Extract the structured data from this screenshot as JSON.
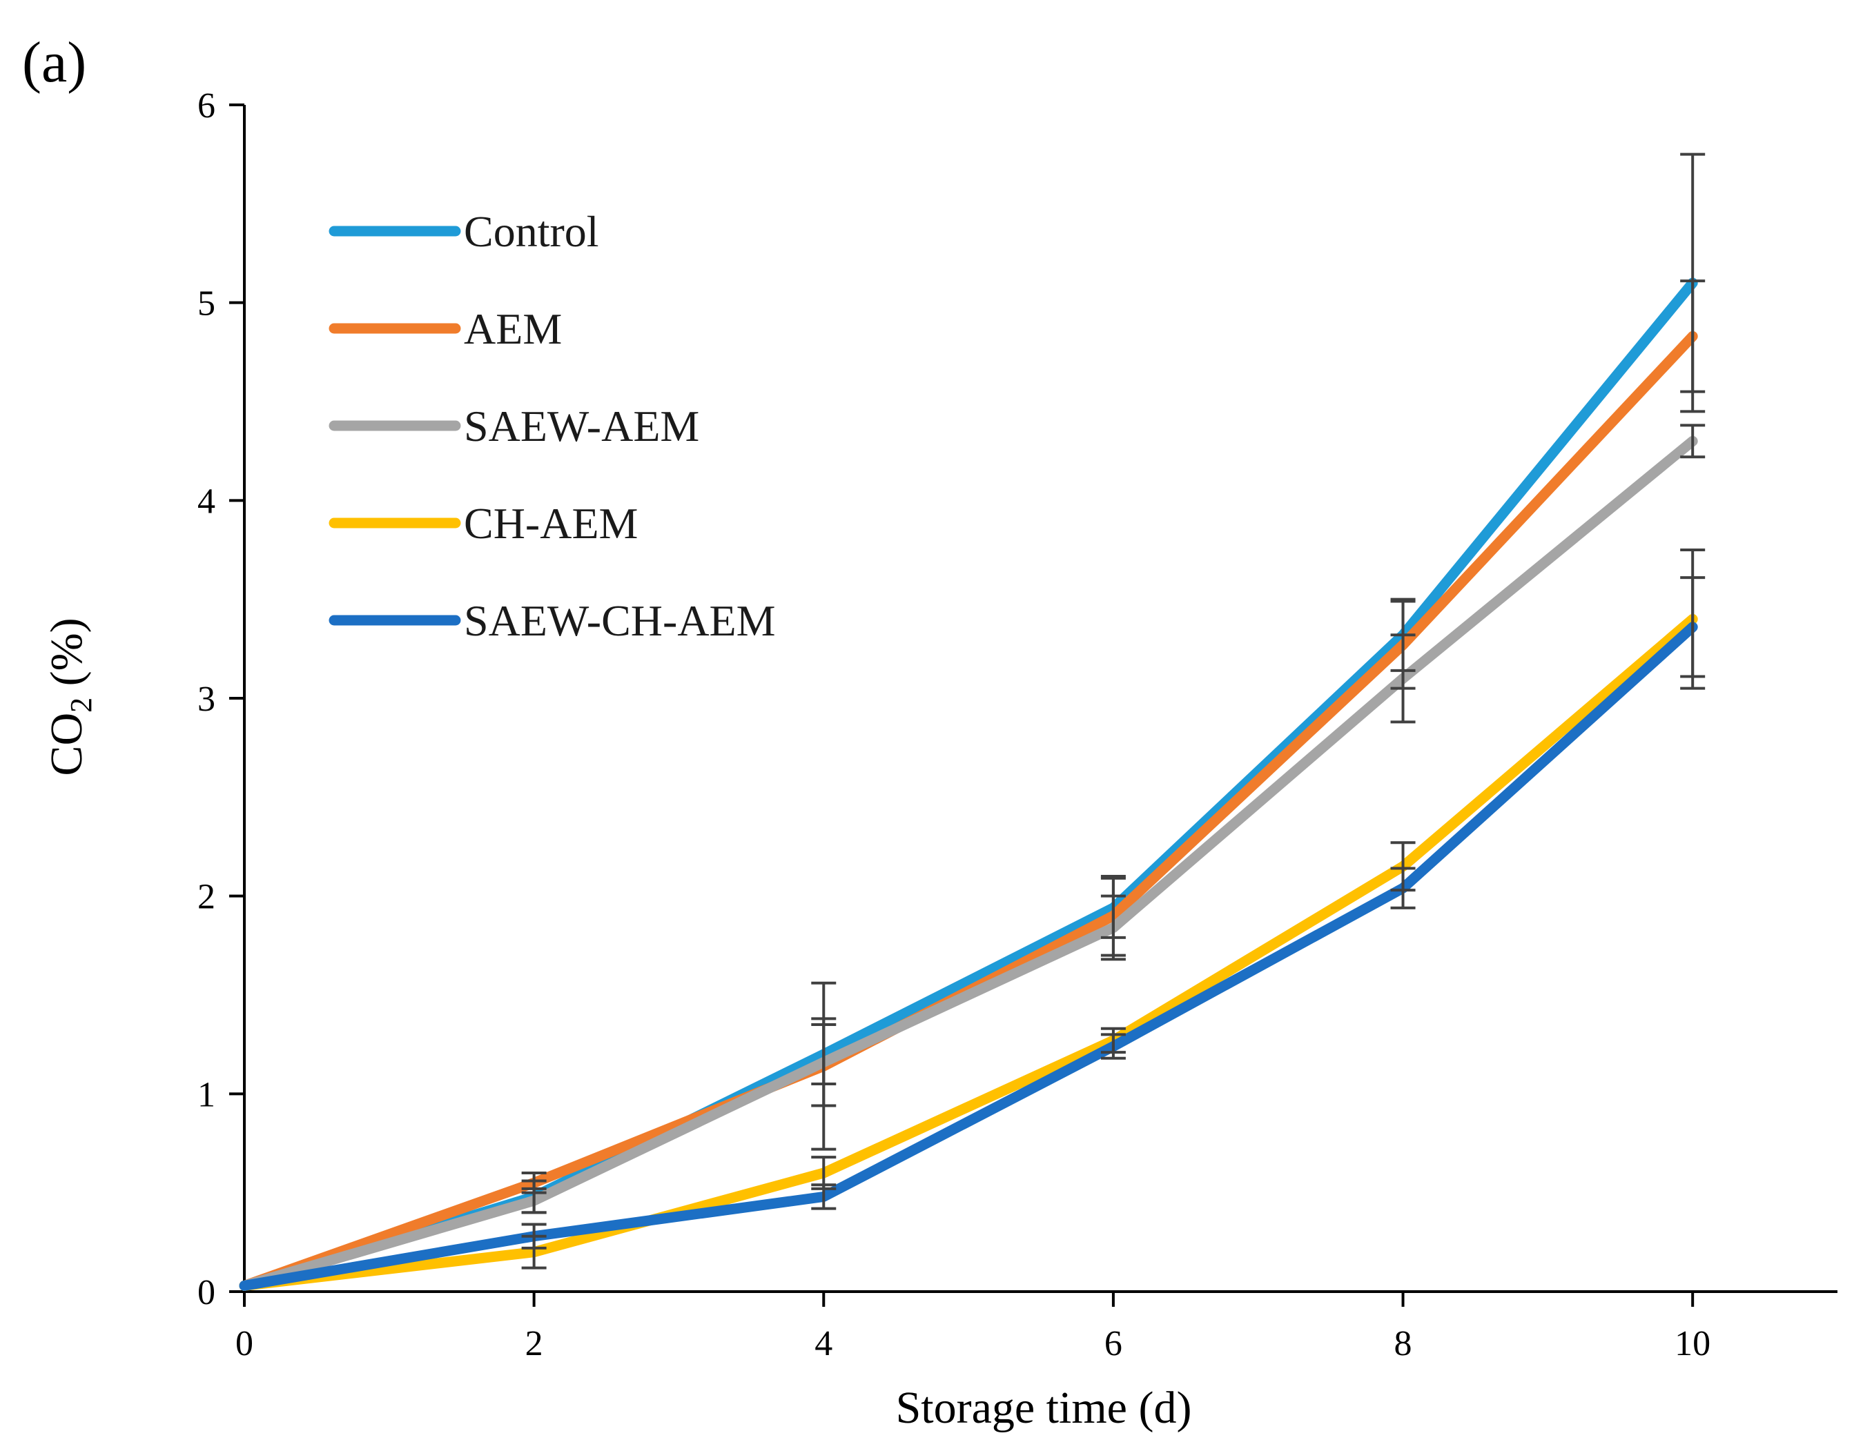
{
  "chart_data": {
    "type": "line",
    "panel_label": "(a)",
    "xlabel": "Storage time (d)",
    "ylabel": {
      "prefix": "CO",
      "subscript": "2",
      "suffix": " (%)"
    },
    "x": [
      0,
      2,
      4,
      6,
      8,
      10
    ],
    "xlim": [
      0,
      11
    ],
    "ylim": [
      0,
      6
    ],
    "xticks": [
      0,
      2,
      4,
      6,
      8,
      10
    ],
    "yticks": [
      0,
      1,
      2,
      3,
      4,
      5,
      6
    ],
    "legend_position": "top-left",
    "series": [
      {
        "name": "Control",
        "color": "#1F9BD7",
        "values": [
          0.03,
          0.48,
          1.2,
          1.94,
          3.32,
          5.1
        ],
        "errors": [
          0,
          0.08,
          0.15,
          0.15,
          0.18,
          0.65
        ]
      },
      {
        "name": "AEM",
        "color": "#F07C2B",
        "values": [
          0.03,
          0.55,
          1.14,
          1.9,
          3.27,
          4.83
        ],
        "errors": [
          0,
          0.05,
          0.42,
          0.2,
          0.22,
          0.28
        ]
      },
      {
        "name": "SAEW-AEM",
        "color": "#A5A5A5",
        "values": [
          0.03,
          0.46,
          1.16,
          1.84,
          3.1,
          4.3
        ],
        "errors": [
          0,
          0.06,
          0.22,
          0.16,
          0.22,
          0.08
        ]
      },
      {
        "name": "CH-AEM",
        "color": "#FFC000",
        "values": [
          0.03,
          0.2,
          0.6,
          1.27,
          2.15,
          3.4
        ],
        "errors": [
          0,
          0.08,
          0.08,
          0.06,
          0.12,
          0.35
        ]
      },
      {
        "name": "SAEW-CH-AEM",
        "color": "#1C6FC4",
        "values": [
          0.03,
          0.28,
          0.48,
          1.24,
          2.04,
          3.36
        ],
        "errors": [
          0,
          0.06,
          0.06,
          0.06,
          0.1,
          0.25
        ]
      }
    ],
    "error_bar_color": "#404040"
  }
}
